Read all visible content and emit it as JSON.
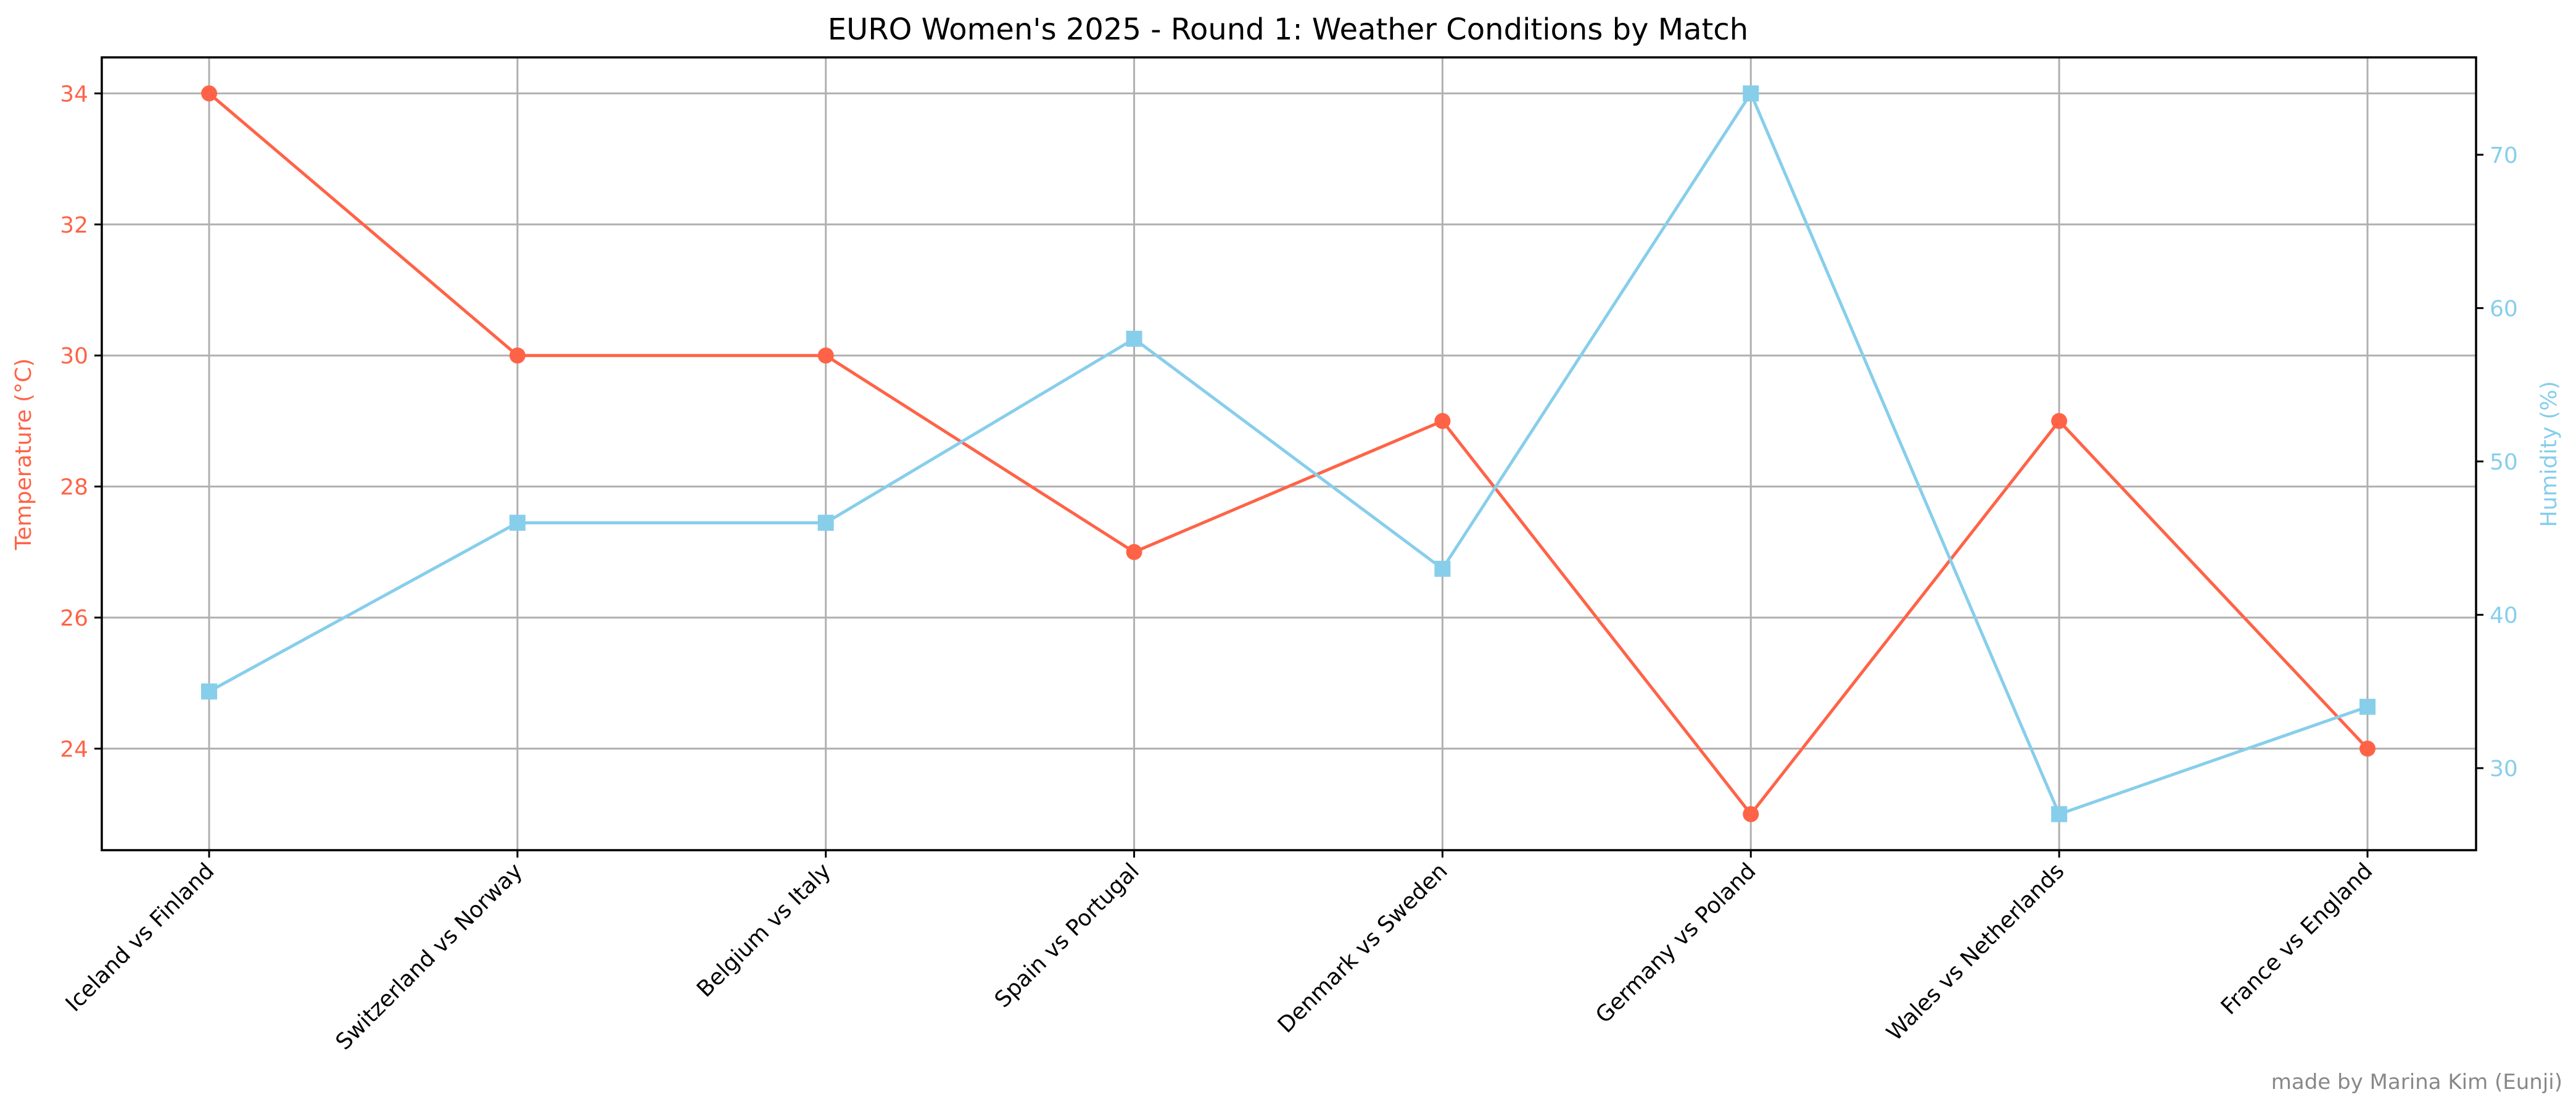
{
  "chart_data": {
    "type": "line",
    "title": "EURO Women's 2025 - Round 1: Weather Conditions by Match",
    "categories": [
      "Iceland vs Finland",
      "Switzerland vs Norway",
      "Belgium vs Italy",
      "Spain vs Portugal",
      "Denmark vs Sweden",
      "Germany vs Poland",
      "Wales vs Netherlands",
      "France vs England"
    ],
    "series": [
      {
        "name": "Temperature (°C)",
        "axis": "left",
        "color": "#FF6347",
        "marker": "circle",
        "values": [
          34,
          30,
          30,
          27,
          29,
          23,
          29,
          24
        ]
      },
      {
        "name": "Humidity (%)",
        "axis": "right",
        "color": "#87CEEB",
        "marker": "square",
        "values": [
          35,
          46,
          46,
          58,
          43,
          74,
          27,
          34
        ]
      }
    ],
    "y_left": {
      "label": "Temperature (°C)",
      "ticks": [
        24,
        26,
        28,
        30,
        32,
        34
      ],
      "lim": [
        22.45,
        34.55
      ]
    },
    "y_right": {
      "label": "Humidity (%)",
      "ticks": [
        30,
        40,
        50,
        60,
        70
      ],
      "lim": [
        24.65,
        76.35
      ]
    },
    "grid": true,
    "legend": "none"
  },
  "credit": "made by Marina Kim (Eunji)"
}
